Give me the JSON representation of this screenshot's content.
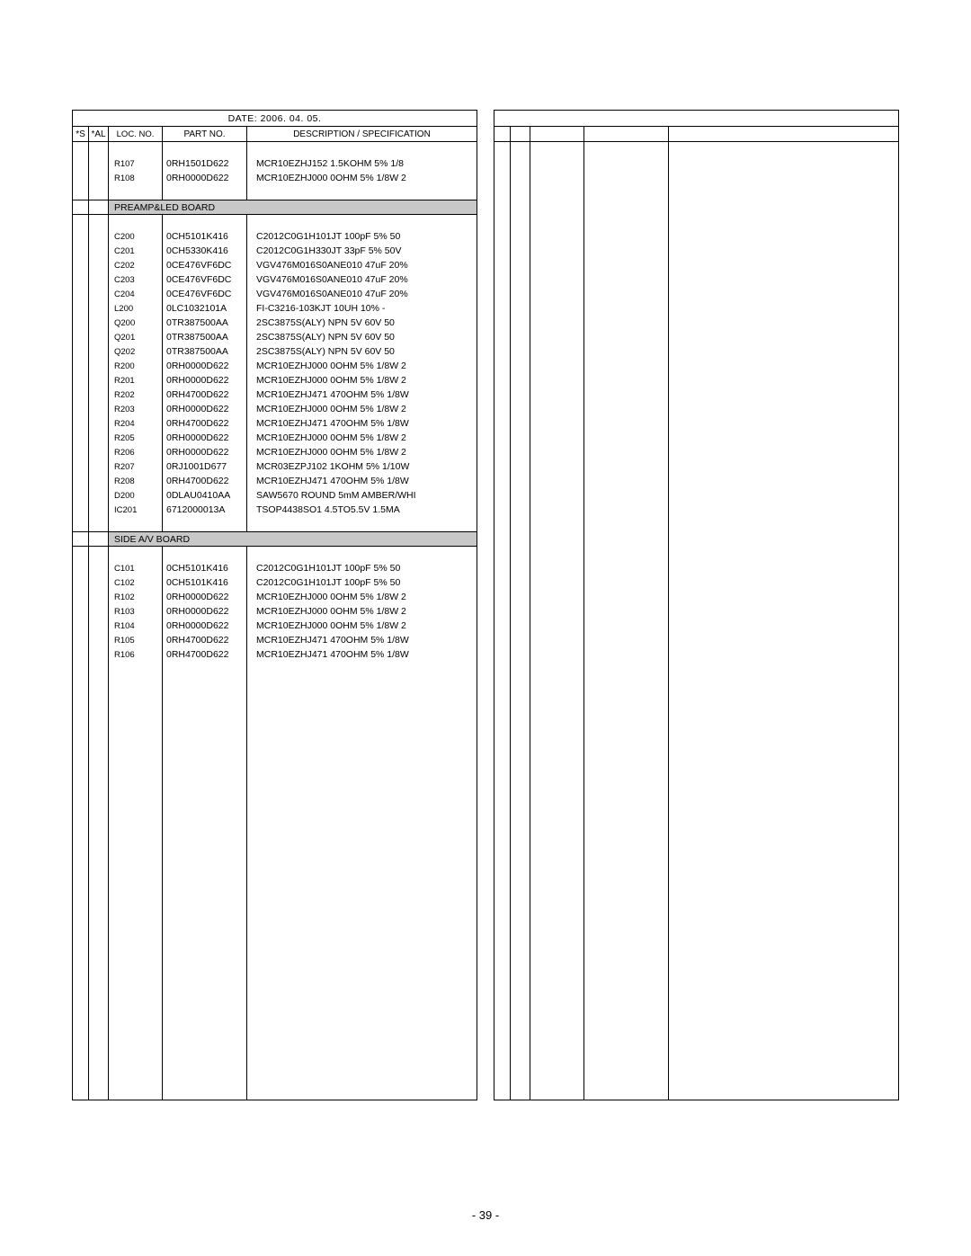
{
  "date": "DATE: 2006. 04. 05.",
  "headers": {
    "s": "*S",
    "al": "*AL",
    "loc": "LOC. NO.",
    "part": "PART NO.",
    "desc": "DESCRIPTION / SPECIFICATION"
  },
  "page_number": "- 39 -",
  "left_content": [
    {
      "type": "spacer"
    },
    {
      "type": "row",
      "loc": "R107",
      "part": "0RH1501D622",
      "desc": "MCR10EZHJ152 1.5KOHM 5% 1/8"
    },
    {
      "type": "row",
      "loc": "R108",
      "part": "0RH0000D622",
      "desc": "MCR10EZHJ000 0OHM 5% 1/8W 2"
    },
    {
      "type": "spacer"
    },
    {
      "type": "section",
      "label": "PREAMP&LED BOARD"
    },
    {
      "type": "spacer"
    },
    {
      "type": "row",
      "loc": "C200",
      "part": "0CH5101K416",
      "desc": "C2012C0G1H101JT 100pF 5% 50"
    },
    {
      "type": "row",
      "loc": "C201",
      "part": "0CH5330K416",
      "desc": "C2012C0G1H330JT 33pF 5% 50V"
    },
    {
      "type": "row",
      "loc": "C202",
      "part": "0CE476VF6DC",
      "desc": "VGV476M016S0ANE010 47uF 20%"
    },
    {
      "type": "row",
      "loc": "C203",
      "part": "0CE476VF6DC",
      "desc": "VGV476M016S0ANE010 47uF 20%"
    },
    {
      "type": "row",
      "loc": "C204",
      "part": "0CE476VF6DC",
      "desc": "VGV476M016S0ANE010 47uF 20%"
    },
    {
      "type": "row",
      "loc": "L200",
      "part": "0LC1032101A",
      "desc": "FI-C3216-103KJT 10UH 10% -"
    },
    {
      "type": "row",
      "loc": "Q200",
      "part": "0TR387500AA",
      "desc": "2SC3875S(ALY) NPN 5V 60V 50"
    },
    {
      "type": "row",
      "loc": "Q201",
      "part": "0TR387500AA",
      "desc": "2SC3875S(ALY) NPN 5V 60V 50"
    },
    {
      "type": "row",
      "loc": "Q202",
      "part": "0TR387500AA",
      "desc": "2SC3875S(ALY) NPN 5V 60V 50"
    },
    {
      "type": "row",
      "loc": "R200",
      "part": "0RH0000D622",
      "desc": "MCR10EZHJ000 0OHM 5% 1/8W 2"
    },
    {
      "type": "row",
      "loc": "R201",
      "part": "0RH0000D622",
      "desc": "MCR10EZHJ000 0OHM 5% 1/8W 2"
    },
    {
      "type": "row",
      "loc": "R202",
      "part": "0RH4700D622",
      "desc": "MCR10EZHJ471 470OHM 5% 1/8W"
    },
    {
      "type": "row",
      "loc": "R203",
      "part": "0RH0000D622",
      "desc": "MCR10EZHJ000 0OHM 5% 1/8W 2"
    },
    {
      "type": "row",
      "loc": "R204",
      "part": "0RH4700D622",
      "desc": "MCR10EZHJ471 470OHM 5% 1/8W"
    },
    {
      "type": "row",
      "loc": "R205",
      "part": "0RH0000D622",
      "desc": "MCR10EZHJ000 0OHM 5% 1/8W 2"
    },
    {
      "type": "row",
      "loc": "R206",
      "part": "0RH0000D622",
      "desc": "MCR10EZHJ000 0OHM 5% 1/8W 2"
    },
    {
      "type": "row",
      "loc": "R207",
      "part": "0RJ1001D677",
      "desc": "MCR03EZPJ102 1KOHM 5% 1/10W"
    },
    {
      "type": "row",
      "loc": "R208",
      "part": "0RH4700D622",
      "desc": "MCR10EZHJ471 470OHM 5% 1/8W"
    },
    {
      "type": "row",
      "loc": "D200",
      "part": "0DLAU0410AA",
      "desc": "SAW5670 ROUND 5mM AMBER/WHI"
    },
    {
      "type": "row",
      "loc": "IC201",
      "part": "6712000013A",
      "desc": "TSOP4438SO1 4.5TO5.5V 1.5MA"
    },
    {
      "type": "spacer"
    },
    {
      "type": "section",
      "label": "SIDE A/V BOARD"
    },
    {
      "type": "spacer"
    },
    {
      "type": "row",
      "loc": "C101",
      "part": "0CH5101K416",
      "desc": "C2012C0G1H101JT 100pF 5% 50"
    },
    {
      "type": "row",
      "loc": "C102",
      "part": "0CH5101K416",
      "desc": "C2012C0G1H101JT 100pF 5% 50"
    },
    {
      "type": "row",
      "loc": "R102",
      "part": "0RH0000D622",
      "desc": "MCR10EZHJ000 0OHM 5% 1/8W 2"
    },
    {
      "type": "row",
      "loc": "R103",
      "part": "0RH0000D622",
      "desc": "MCR10EZHJ000 0OHM 5% 1/8W 2"
    },
    {
      "type": "row",
      "loc": "R104",
      "part": "0RH0000D622",
      "desc": "MCR10EZHJ000 0OHM 5% 1/8W 2"
    },
    {
      "type": "row",
      "loc": "R105",
      "part": "0RH4700D622",
      "desc": "MCR10EZHJ471 470OHM 5% 1/8W"
    },
    {
      "type": "row",
      "loc": "R106",
      "part": "0RH4700D622",
      "desc": "MCR10EZHJ471 470OHM 5% 1/8W"
    }
  ],
  "right_content": []
}
